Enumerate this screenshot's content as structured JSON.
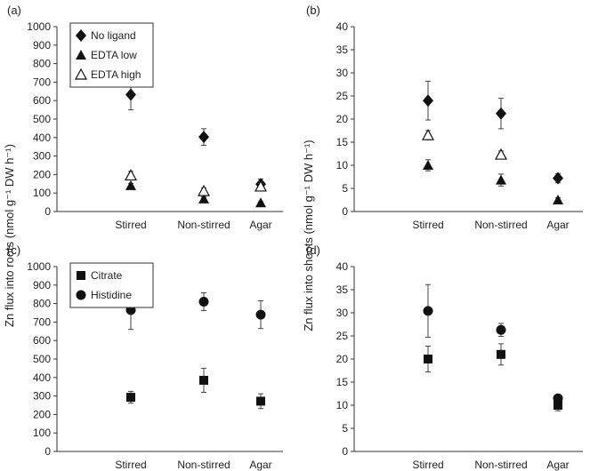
{
  "y_labels": {
    "roots": "Zn flux into roots (nmol g⁻¹ DW h⁻¹)",
    "shoots": "Zn flux into shoots (nmol g⁻¹ DW h⁻¹)"
  },
  "chart_data": [
    {
      "panel": "(a)",
      "type": "scatter",
      "categories": [
        "Stirred",
        "Non-stirred",
        "Agar"
      ],
      "ylim": [
        0,
        1000
      ],
      "yticks": [
        0,
        100,
        200,
        300,
        400,
        500,
        600,
        700,
        800,
        900,
        1000
      ],
      "legend_position": "top-left",
      "series": [
        {
          "name": "No ligand",
          "marker": "diamond",
          "values": [
            632,
            403,
            148
          ],
          "errors": [
            82,
            45,
            28
          ]
        },
        {
          "name": "EDTA low",
          "marker": "triangle",
          "values": [
            140,
            68,
            47
          ],
          "errors": [
            12,
            10,
            6
          ]
        },
        {
          "name": "EDTA high",
          "marker": "triangle-open",
          "values": [
            195,
            110,
            135
          ],
          "errors": [
            22,
            18,
            18
          ]
        }
      ]
    },
    {
      "panel": "(b)",
      "type": "scatter",
      "categories": [
        "Stirred",
        "Non-stirred",
        "Agar"
      ],
      "ylim": [
        0,
        40
      ],
      "yticks": [
        0,
        5,
        10,
        15,
        20,
        25,
        30,
        35,
        40
      ],
      "series": [
        {
          "values": [
            24,
            21.2,
            7.2
          ],
          "errors": [
            4.2,
            3.3,
            1.0
          ],
          "marker": "diamond"
        },
        {
          "values": [
            10,
            6.8,
            2.5
          ],
          "errors": [
            1.2,
            1.3,
            0.5
          ],
          "marker": "triangle"
        },
        {
          "values": [
            16.5,
            12.3,
            null
          ],
          "errors": [
            1.0,
            0.8,
            null
          ],
          "marker": "triangle-open"
        }
      ]
    },
    {
      "panel": "(c)",
      "type": "scatter",
      "categories": [
        "Stirred",
        "Non-stirred",
        "Agar"
      ],
      "ylim": [
        0,
        1000
      ],
      "yticks": [
        0,
        100,
        200,
        300,
        400,
        500,
        600,
        700,
        800,
        900,
        1000
      ],
      "legend_position": "top-left",
      "series": [
        {
          "name": "Citrate",
          "marker": "square",
          "values": [
            293,
            385,
            272
          ],
          "errors": [
            32,
            65,
            40
          ]
        },
        {
          "name": "Histidine",
          "marker": "circle",
          "values": [
            765,
            810,
            740
          ],
          "errors": [
            105,
            48,
            75
          ]
        }
      ]
    },
    {
      "panel": "(d)",
      "type": "scatter",
      "categories": [
        "Stirred",
        "Non-stirred",
        "Agar"
      ],
      "ylim": [
        0,
        40
      ],
      "yticks": [
        0,
        5,
        10,
        15,
        20,
        25,
        30,
        35,
        40
      ],
      "series": [
        {
          "marker": "square",
          "values": [
            20,
            21,
            10
          ],
          "errors": [
            2.8,
            2.3,
            1.2
          ]
        },
        {
          "marker": "circle",
          "values": [
            30.4,
            26.3,
            11.5
          ],
          "errors": [
            5.7,
            1.4,
            0.4
          ]
        }
      ]
    }
  ]
}
